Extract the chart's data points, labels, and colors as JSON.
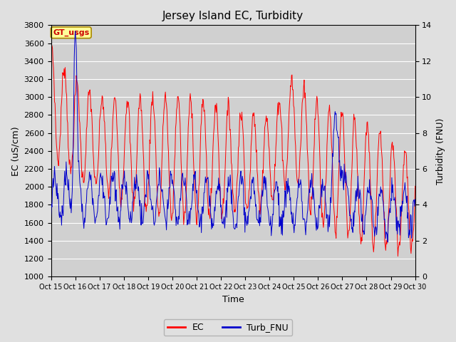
{
  "title": "Jersey Island EC, Turbidity",
  "xlabel": "Time",
  "ylabel_left": "EC (uS/cm)",
  "ylabel_right": "Turbidity (FNU)",
  "fig_bg": "#e0e0e0",
  "plot_bg": "#d0d0d0",
  "ec_color": "#ff0000",
  "turb_color": "#0000cc",
  "ylim_left": [
    1000,
    3800
  ],
  "ylim_right": [
    0,
    14
  ],
  "yticks_left": [
    1000,
    1200,
    1400,
    1600,
    1800,
    2000,
    2200,
    2400,
    2600,
    2800,
    3000,
    3200,
    3400,
    3600,
    3800
  ],
  "yticks_right": [
    0,
    2,
    4,
    6,
    8,
    10,
    12,
    14
  ],
  "xtick_labels": [
    "Oct 15",
    "Oct 16",
    "Oct 17",
    "Oct 18",
    "Oct 19",
    "Oct 20",
    "Oct 21",
    "Oct 22",
    "Oct 23",
    "Oct 24",
    "Oct 25",
    "Oct 26",
    "Oct 27",
    "Oct 28",
    "Oct 29",
    "Oct 30"
  ],
  "legend_label_ec": "EC",
  "legend_label_turb": "Turb_FNU",
  "badge_text": "GT_usgs",
  "badge_bg": "#ffff99",
  "badge_border": "#aa8800",
  "badge_text_color": "#cc0000"
}
